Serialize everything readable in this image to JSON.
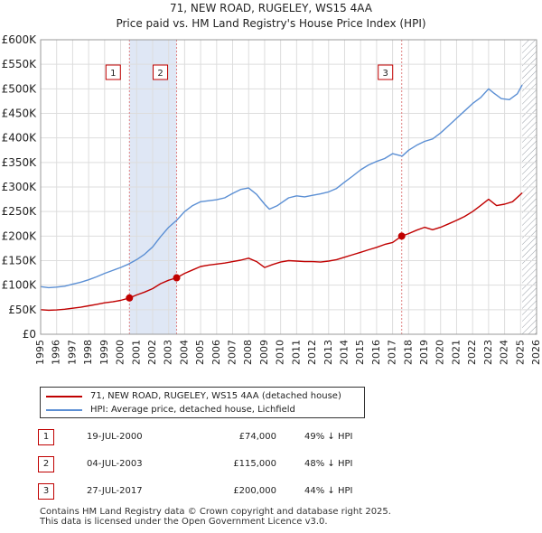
{
  "header": {
    "title": "71, NEW ROAD, RUGELEY, WS15 4AA",
    "subtitle": "Price paid vs. HM Land Registry's House Price Index (HPI)"
  },
  "colors": {
    "property": "#c00000",
    "hpi": "#5b8fd4",
    "shade": "#dfe7f5",
    "hatch": "#9aa0a8",
    "grid": "#dddddd",
    "vline": "#e08080"
  },
  "legend": {
    "property_label": "71, NEW ROAD, RUGELEY, WS15 4AA (detached house)",
    "hpi_label": "HPI: Average price, detached house, Lichfield"
  },
  "sales": [
    {
      "num": "1",
      "date": "19-JUL-2000",
      "price": "£74,000",
      "hpi_diff": "49% ↓ HPI"
    },
    {
      "num": "2",
      "date": "04-JUL-2003",
      "price": "£115,000",
      "hpi_diff": "48% ↓ HPI"
    },
    {
      "num": "3",
      "date": "27-JUL-2017",
      "price": "£200,000",
      "hpi_diff": "44% ↓ HPI"
    }
  ],
  "footer": {
    "line1": "Contains HM Land Registry data © Crown copyright and database right 2025.",
    "line2": "This data is licensed under the Open Government Licence v3.0."
  },
  "chart_data": {
    "type": "line",
    "title": "71, NEW ROAD, RUGELEY, WS15 4AA",
    "subtitle": "Price paid vs. HM Land Registry's House Price Index (HPI)",
    "xlim": [
      1995,
      2026
    ],
    "ylim": [
      0,
      600000
    ],
    "x_ticks": [
      "1995",
      "1996",
      "1997",
      "1998",
      "1999",
      "2000",
      "2001",
      "2002",
      "2003",
      "2004",
      "2005",
      "2006",
      "2007",
      "2008",
      "2009",
      "2010",
      "2011",
      "2012",
      "2013",
      "2014",
      "2015",
      "2016",
      "2017",
      "2018",
      "2019",
      "2020",
      "2021",
      "2022",
      "2023",
      "2024",
      "2025",
      "2026"
    ],
    "y_ticks": [
      {
        "value": 0,
        "label": "£0"
      },
      {
        "value": 50000,
        "label": "£50K"
      },
      {
        "value": 100000,
        "label": "£100K"
      },
      {
        "value": 150000,
        "label": "£150K"
      },
      {
        "value": 200000,
        "label": "£200K"
      },
      {
        "value": 250000,
        "label": "£250K"
      },
      {
        "value": 300000,
        "label": "£300K"
      },
      {
        "value": 350000,
        "label": "£350K"
      },
      {
        "value": 400000,
        "label": "£400K"
      },
      {
        "value": 450000,
        "label": "£450K"
      },
      {
        "value": 500000,
        "label": "£500K"
      },
      {
        "value": 550000,
        "label": "£550K"
      },
      {
        "value": 600000,
        "label": "£600K"
      }
    ],
    "shaded_periods": [
      [
        2000.55,
        2003.5
      ]
    ],
    "future_hatch_from": 2025.1,
    "sale_markers": [
      {
        "label": "1",
        "x": 2000.55,
        "y": 74000
      },
      {
        "label": "2",
        "x": 2003.5,
        "y": 115000
      },
      {
        "label": "3",
        "x": 2017.57,
        "y": 200000
      }
    ],
    "series": [
      {
        "name": "71, NEW ROAD, RUGELEY, WS15 4AA (detached house)",
        "color": "#c00000",
        "x": [
          1995,
          1995.5,
          1996,
          1996.5,
          1997,
          1997.5,
          1998,
          1998.5,
          1999,
          1999.5,
          2000,
          2000.55,
          2001,
          2001.5,
          2002,
          2002.5,
          2003,
          2003.5,
          2004,
          2004.5,
          2005,
          2005.5,
          2006,
          2006.5,
          2007,
          2007.5,
          2008,
          2008.5,
          2009,
          2009.5,
          2010,
          2010.5,
          2011,
          2011.5,
          2012,
          2012.5,
          2013,
          2013.5,
          2014,
          2014.5,
          2015,
          2015.5,
          2016,
          2016.5,
          2017,
          2017.57,
          2018,
          2018.5,
          2019,
          2019.5,
          2020,
          2020.5,
          2021,
          2021.5,
          2022,
          2022.5,
          2023,
          2023.5,
          2024,
          2024.5,
          2025.1
        ],
        "values": [
          50000,
          49000,
          49500,
          51000,
          53000,
          55000,
          58000,
          61000,
          64000,
          66000,
          69000,
          74000,
          80000,
          86000,
          93000,
          103000,
          110000,
          115000,
          124000,
          131000,
          138000,
          141000,
          143000,
          145000,
          148000,
          151000,
          155000,
          148000,
          136000,
          142000,
          147000,
          150000,
          149000,
          148000,
          148000,
          147000,
          149000,
          152000,
          157000,
          162000,
          167000,
          172000,
          177000,
          183000,
          187000,
          200000,
          205000,
          212000,
          218000,
          213000,
          218000,
          225000,
          232000,
          240000,
          250000,
          262000,
          275000,
          262000,
          265000,
          270000,
          288000
        ]
      },
      {
        "name": "HPI: Average price, detached house, Lichfield",
        "color": "#5b8fd4",
        "x": [
          1995,
          1995.5,
          1996,
          1996.5,
          1997,
          1997.5,
          1998,
          1998.5,
          1999,
          1999.5,
          2000,
          2000.5,
          2001,
          2001.5,
          2002,
          2002.5,
          2003,
          2003.5,
          2004,
          2004.5,
          2005,
          2005.5,
          2006,
          2006.5,
          2007,
          2007.5,
          2008,
          2008.5,
          2009,
          2009.3,
          2009.8,
          2010.5,
          2011,
          2011.5,
          2012,
          2012.5,
          2013,
          2013.5,
          2014,
          2014.5,
          2015,
          2015.5,
          2016,
          2016.5,
          2017,
          2017.6,
          2018,
          2018.5,
          2019,
          2019.5,
          2020,
          2020.5,
          2021,
          2021.5,
          2022,
          2022.5,
          2023,
          2023.3,
          2023.8,
          2024.3,
          2024.8,
          2025.1
        ],
        "values": [
          97000,
          95000,
          96000,
          98000,
          102000,
          106000,
          111000,
          117000,
          124000,
          130000,
          136000,
          143000,
          152000,
          163000,
          178000,
          199000,
          218000,
          232000,
          250000,
          262000,
          270000,
          272000,
          274000,
          278000,
          287000,
          295000,
          298000,
          285000,
          265000,
          255000,
          262000,
          278000,
          282000,
          280000,
          283000,
          286000,
          290000,
          297000,
          310000,
          322000,
          335000,
          345000,
          352000,
          358000,
          368000,
          363000,
          375000,
          385000,
          393000,
          398000,
          410000,
          425000,
          440000,
          455000,
          470000,
          482000,
          500000,
          492000,
          480000,
          478000,
          490000,
          508000
        ]
      }
    ]
  }
}
